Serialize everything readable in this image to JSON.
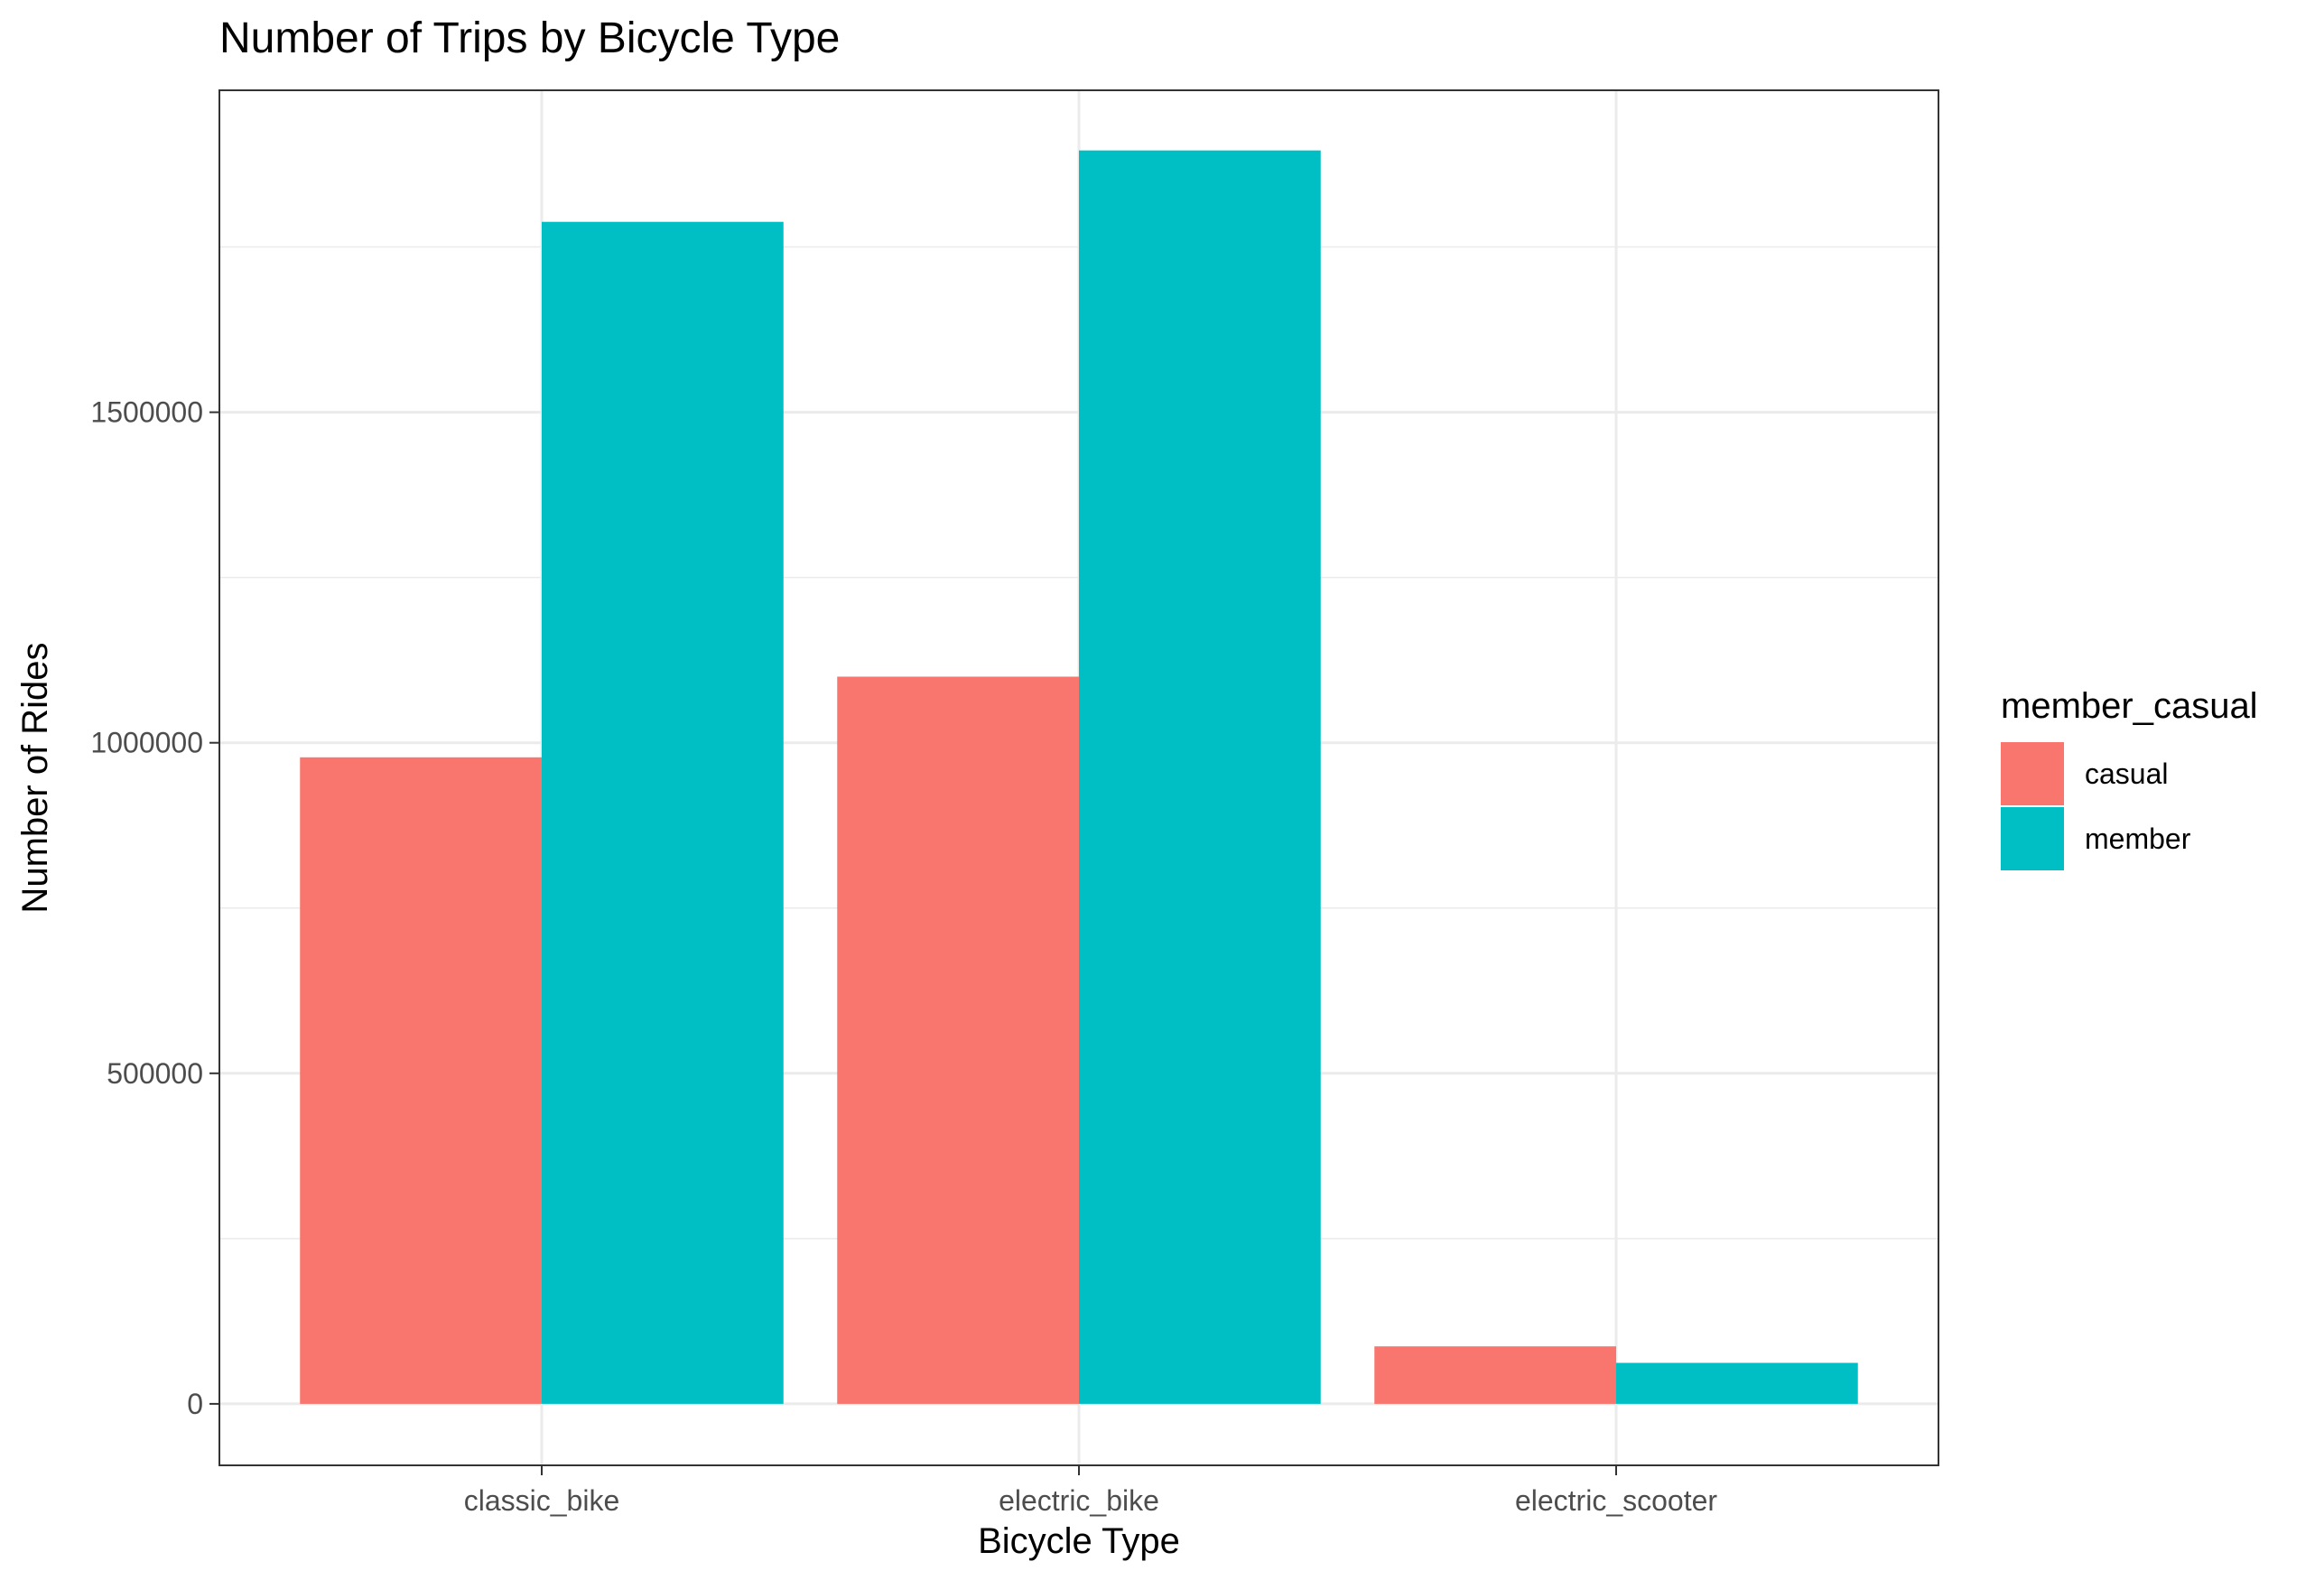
{
  "chart_data": {
    "type": "bar",
    "title": "Number of Trips by Bicycle Type",
    "xlabel": "Bicycle Type",
    "ylabel": "Number of Rides",
    "categories": [
      "classic_bike",
      "electric_bike",
      "electric_scooter"
    ],
    "series": [
      {
        "name": "casual",
        "color": "#F8766D",
        "values": [
          978000,
          1100000,
          87000
        ]
      },
      {
        "name": "member",
        "color": "#00BFC4",
        "values": [
          1788000,
          1896000,
          62000
        ]
      }
    ],
    "ylim": [
      -93000,
      1987000
    ],
    "yticks": [
      0,
      500000,
      1000000,
      1500000
    ],
    "ytick_labels": [
      "0",
      "500000",
      "1000000",
      "1500000"
    ],
    "legend": {
      "title": "member_casual",
      "position": "right"
    },
    "grid": true
  }
}
